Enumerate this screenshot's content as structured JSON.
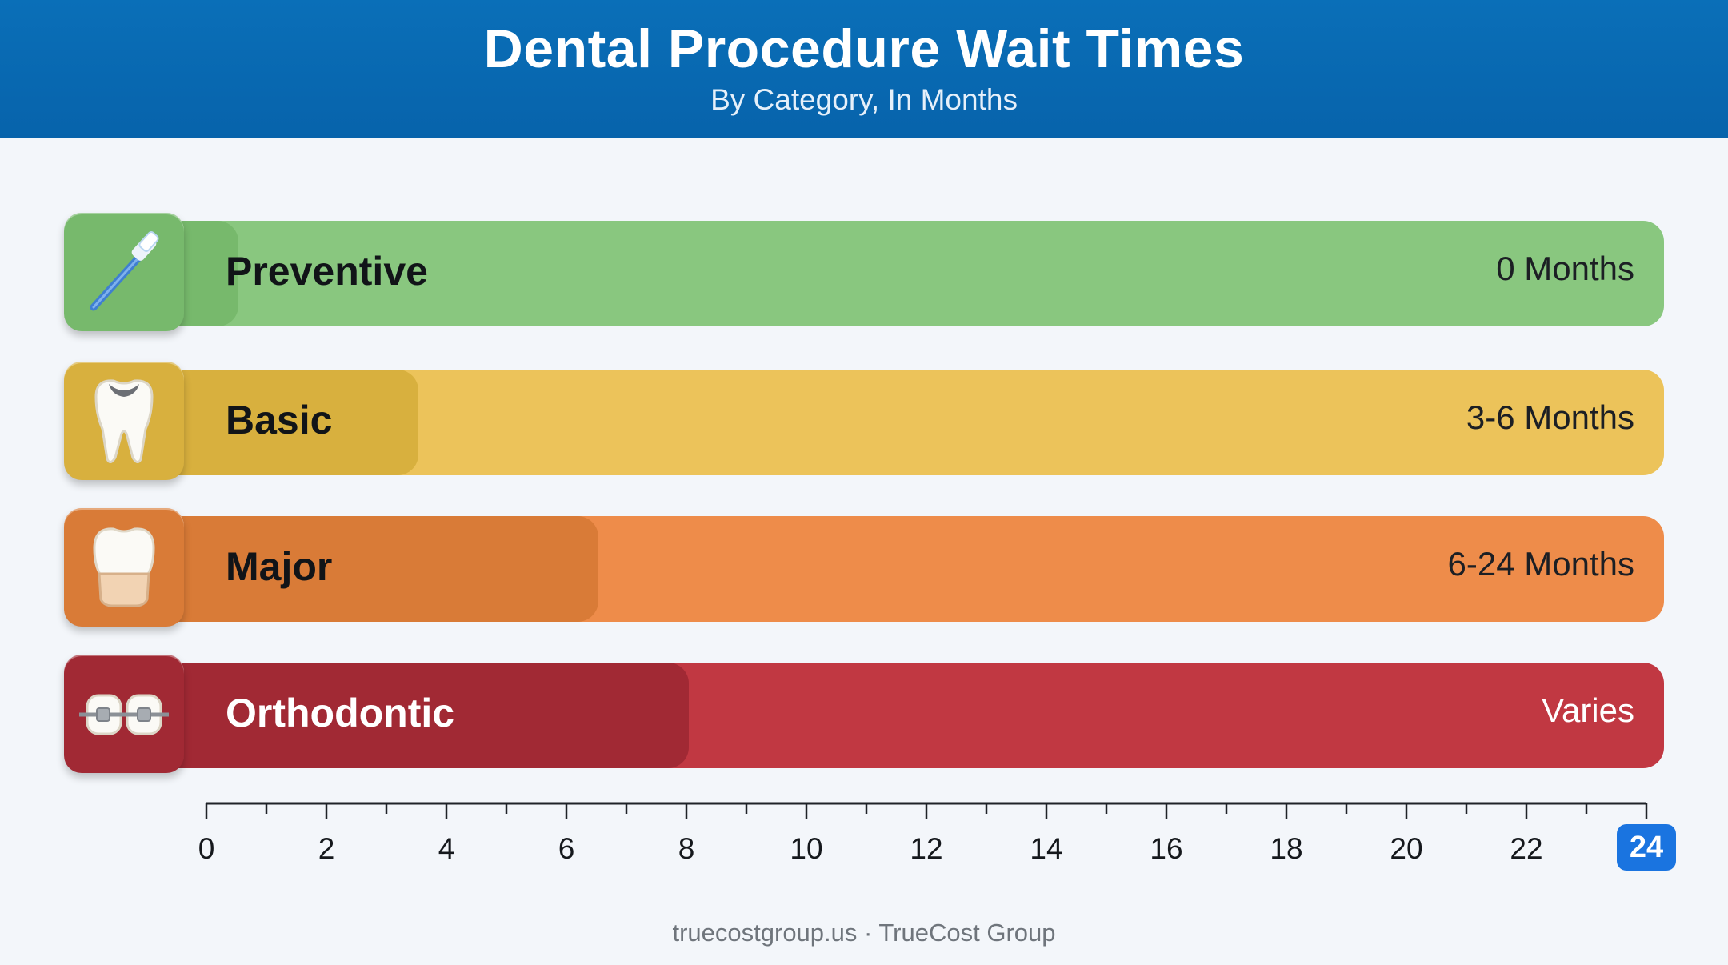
{
  "header": {
    "title": "Dental Procedure Wait Times",
    "subtitle": "By Category, In Months"
  },
  "chart_data": {
    "type": "bar",
    "orientation": "horizontal",
    "title": "Dental Procedure Wait Times",
    "subtitle": "By Category, In Months",
    "categories": [
      "Preventive",
      "Basic",
      "Major",
      "Orthodontic"
    ],
    "value_labels": [
      "0 Months",
      "3-6 Months",
      "6-24 Months",
      "Varies"
    ],
    "ranges": [
      [
        0,
        0
      ],
      [
        3,
        6
      ],
      [
        6,
        24
      ],
      [
        null,
        null
      ]
    ],
    "x_ticks": [
      0,
      2,
      4,
      6,
      8,
      10,
      12,
      14,
      16,
      18,
      20,
      22,
      24
    ],
    "xlim": [
      0,
      24
    ],
    "highlighted_tick": 24,
    "colors": {
      "Preventive": {
        "light": "#89c77f",
        "dark": "#77b96c"
      },
      "Basic": {
        "light": "#ecc35a",
        "dark": "#d8b03e"
      },
      "Major": {
        "light": "#ee8c4a",
        "dark": "#d97b37"
      },
      "Orthodontic": {
        "light": "#c13842",
        "dark": "#a12934"
      }
    },
    "icons": [
      "toothbrush-icon",
      "tooth-filling-icon",
      "tooth-crown-icon",
      "braces-icon"
    ]
  },
  "footer": {
    "source": "truecostgroup.us · TrueCost Group"
  }
}
